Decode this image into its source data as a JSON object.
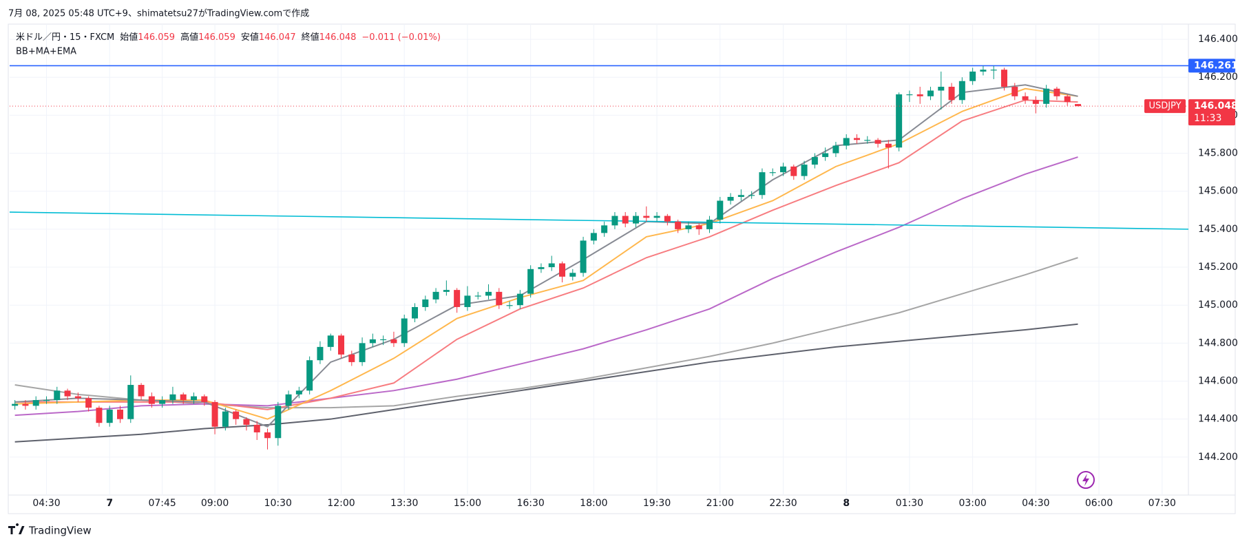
{
  "caption": "7月 08, 2025 05:48 UTC+9、shimatetsu27がTradingView.comで作成",
  "legend": {
    "symbol": "米ドル／円・15・FXCM",
    "open_label": "始値",
    "high_label": "高値",
    "low_label": "安値",
    "close_label": "終値",
    "change": "−0.011 (−0.01%)",
    "indicators_label": "BB+MA+EMA"
  },
  "footer": {
    "brand": "TradingView"
  },
  "chart_data": {
    "type": "candlestick",
    "up_color": "#089981",
    "down_color": "#f23645",
    "open": [
      144.47,
      144.48,
      144.47,
      144.5,
      144.5,
      144.55,
      144.52,
      144.51,
      144.46,
      144.38,
      144.45,
      144.4,
      144.58,
      144.52,
      144.48,
      144.5,
      144.53,
      144.5,
      144.52,
      144.49,
      144.36,
      144.44,
      144.4,
      144.37,
      144.33,
      144.3,
      144.47,
      144.53,
      144.55,
      144.71,
      144.78,
      144.84,
      144.74,
      144.7,
      144.8,
      144.82,
      144.82,
      144.8,
      144.93,
      144.99,
      145.03,
      145.07,
      145.08,
      144.99,
      145.05,
      145.05,
      145.07,
      145.0,
      145.0,
      145.06,
      145.19,
      145.2,
      145.22,
      145.15,
      145.17,
      145.34,
      145.38,
      145.42,
      145.47,
      145.43,
      145.47,
      145.46,
      145.47,
      145.44,
      145.4,
      145.42,
      145.4,
      145.45,
      145.55,
      145.57,
      145.58,
      145.58,
      145.7,
      145.7,
      145.73,
      145.68,
      145.74,
      145.78,
      145.8,
      145.84,
      145.88,
      145.87,
      145.87,
      145.85,
      145.83,
      146.11,
      146.11,
      146.1,
      146.13,
      146.15,
      146.08,
      146.18,
      146.23,
      146.24,
      146.24,
      146.15,
      146.1,
      146.08,
      146.06,
      146.14,
      146.1,
      146.059
    ],
    "high": [
      144.5,
      144.5,
      144.52,
      144.52,
      144.57,
      144.56,
      144.54,
      144.52,
      144.47,
      144.47,
      144.47,
      144.63,
      144.59,
      144.54,
      144.52,
      144.57,
      144.54,
      144.54,
      144.53,
      144.5,
      144.46,
      144.45,
      144.41,
      144.39,
      144.35,
      144.49,
      144.55,
      144.57,
      144.73,
      144.81,
      144.85,
      144.85,
      144.76,
      144.83,
      144.85,
      144.84,
      144.86,
      144.95,
      145.01,
      145.05,
      145.09,
      145.13,
      145.09,
      145.1,
      145.07,
      145.11,
      145.09,
      145.02,
      145.08,
      145.21,
      145.22,
      145.26,
      145.23,
      145.19,
      145.36,
      145.4,
      145.44,
      145.49,
      145.49,
      145.49,
      145.52,
      145.49,
      145.48,
      145.45,
      145.44,
      145.43,
      145.47,
      145.57,
      145.59,
      145.61,
      145.6,
      145.72,
      145.72,
      145.75,
      145.74,
      145.76,
      145.8,
      145.83,
      145.86,
      145.9,
      145.9,
      145.89,
      145.88,
      145.87,
      146.12,
      146.13,
      146.15,
      146.15,
      146.23,
      146.17,
      146.2,
      146.25,
      146.26,
      146.26,
      146.25,
      146.17,
      146.12,
      146.1,
      146.16,
      146.15,
      146.11,
      146.059
    ],
    "low": [
      144.45,
      144.45,
      144.45,
      144.48,
      144.48,
      144.5,
      144.49,
      144.44,
      144.36,
      144.36,
      144.38,
      144.38,
      144.5,
      144.46,
      144.46,
      144.48,
      144.48,
      144.48,
      144.47,
      144.32,
      144.34,
      144.37,
      144.34,
      144.29,
      144.24,
      144.26,
      144.45,
      144.51,
      144.53,
      144.69,
      144.76,
      144.72,
      144.68,
      144.68,
      144.78,
      144.79,
      144.78,
      144.78,
      144.91,
      144.97,
      145.01,
      145.05,
      144.96,
      144.97,
      145.03,
      145.03,
      144.98,
      144.98,
      144.98,
      145.04,
      145.17,
      145.18,
      145.12,
      145.13,
      145.15,
      145.32,
      145.36,
      145.4,
      145.41,
      145.41,
      145.44,
      145.44,
      145.42,
      145.38,
      145.38,
      145.37,
      145.38,
      145.43,
      145.53,
      145.55,
      145.56,
      145.56,
      145.68,
      145.68,
      145.66,
      145.66,
      145.72,
      145.76,
      145.78,
      145.82,
      145.85,
      145.85,
      145.83,
      145.72,
      145.81,
      146.07,
      146.06,
      146.08,
      146.03,
      146.06,
      146.06,
      146.16,
      146.21,
      146.19,
      146.13,
      146.08,
      146.06,
      146.01,
      146.04,
      146.08,
      146.05,
      146.047
    ],
    "close": [
      144.48,
      144.47,
      144.5,
      144.5,
      144.55,
      144.52,
      144.51,
      144.46,
      144.38,
      144.45,
      144.4,
      144.58,
      144.52,
      144.48,
      144.5,
      144.53,
      144.5,
      144.52,
      144.49,
      144.36,
      144.44,
      144.4,
      144.37,
      144.33,
      144.3,
      144.47,
      144.53,
      144.55,
      144.71,
      144.78,
      144.84,
      144.74,
      144.7,
      144.8,
      144.82,
      144.82,
      144.8,
      144.93,
      144.99,
      145.03,
      145.07,
      145.08,
      144.99,
      145.05,
      145.05,
      145.07,
      145.0,
      145.0,
      145.06,
      145.19,
      145.2,
      145.22,
      145.15,
      145.17,
      145.34,
      145.38,
      145.42,
      145.47,
      145.43,
      145.47,
      145.46,
      145.47,
      145.44,
      145.4,
      145.42,
      145.4,
      145.45,
      145.55,
      145.57,
      145.58,
      145.58,
      145.7,
      145.7,
      145.73,
      145.68,
      145.74,
      145.78,
      145.8,
      145.84,
      145.88,
      145.87,
      145.87,
      145.85,
      145.83,
      146.11,
      146.11,
      146.1,
      146.13,
      146.15,
      146.08,
      146.18,
      146.23,
      146.24,
      146.24,
      146.15,
      146.1,
      146.08,
      146.06,
      146.14,
      146.1,
      146.07,
      146.048
    ],
    "line_x": [
      0,
      6,
      12,
      18,
      24,
      30,
      36,
      42,
      48,
      54,
      60,
      66,
      72,
      78,
      84,
      90,
      96,
      101
    ],
    "lines": [
      {
        "color": "#a5a5a5",
        "values": [
          144.58,
          144.53,
          144.5,
          144.48,
          144.46,
          144.46,
          144.47,
          144.52,
          144.56,
          144.61,
          144.67,
          144.73,
          144.8,
          144.88,
          144.96,
          145.06,
          145.16,
          145.25
        ]
      },
      {
        "color": "#5d606b",
        "values": [
          144.28,
          144.3,
          144.32,
          144.35,
          144.37,
          144.4,
          144.45,
          144.5,
          144.55,
          144.6,
          144.65,
          144.7,
          144.74,
          144.78,
          144.81,
          144.84,
          144.87,
          144.9
        ]
      },
      {
        "color": "#ba68c8",
        "values": [
          144.42,
          144.44,
          144.47,
          144.48,
          144.47,
          144.51,
          144.55,
          144.61,
          144.69,
          144.77,
          144.87,
          144.98,
          145.14,
          145.28,
          145.41,
          145.56,
          145.69,
          145.78
        ]
      },
      {
        "color": "#f77c80",
        "values": [
          144.49,
          144.49,
          144.49,
          144.49,
          144.45,
          144.51,
          144.59,
          144.82,
          144.98,
          145.09,
          145.25,
          145.36,
          145.5,
          145.63,
          145.75,
          145.97,
          146.08,
          146.07
        ]
      },
      {
        "color": "#ffb74d",
        "values": [
          144.48,
          144.49,
          144.5,
          144.5,
          144.4,
          144.55,
          144.72,
          144.93,
          145.04,
          145.13,
          145.36,
          145.43,
          145.55,
          145.73,
          145.85,
          146.02,
          146.14,
          146.1
        ]
      },
      {
        "color": "#878a93",
        "values": [
          144.49,
          144.51,
          144.5,
          144.49,
          144.36,
          144.7,
          144.82,
          145.0,
          145.05,
          145.24,
          145.44,
          145.43,
          145.66,
          145.84,
          145.87,
          146.12,
          146.16,
          146.1
        ]
      }
    ],
    "trendline": {
      "color": "#00bcd4",
      "x": [
        -0.5,
        111.5
      ],
      "values": [
        145.49,
        145.4
      ]
    },
    "hline": {
      "color": "#2962ff",
      "value": 146.261
    },
    "symbol_tag": "USDJPY",
    "countdown": "11:33",
    "xlim": [
      -0.5,
      111.5
    ],
    "xticks": [
      {
        "value": 3,
        "label": "04:30"
      },
      {
        "value": 9,
        "label": "7"
      },
      {
        "value": 14,
        "label": "07:45"
      },
      {
        "value": 19,
        "label": "09:00"
      },
      {
        "value": 25,
        "label": "10:30"
      },
      {
        "value": 31,
        "label": "12:00"
      },
      {
        "value": 37,
        "label": "13:30"
      },
      {
        "value": 43,
        "label": "15:00"
      },
      {
        "value": 49,
        "label": "16:30"
      },
      {
        "value": 55,
        "label": "18:00"
      },
      {
        "value": 61,
        "label": "19:30"
      },
      {
        "value": 67,
        "label": "21:00"
      },
      {
        "value": 73,
        "label": "22:30"
      },
      {
        "value": 79,
        "label": "8"
      },
      {
        "value": 85,
        "label": "01:30"
      },
      {
        "value": 91,
        "label": "03:00"
      },
      {
        "value": 97,
        "label": "04:30"
      },
      {
        "value": 103,
        "label": "06:00"
      },
      {
        "value": 109,
        "label": "07:30"
      }
    ],
    "ylim": [
      144.0,
      146.48
    ],
    "yticks": [
      {
        "value": 144.2,
        "label": "144.200"
      },
      {
        "value": 144.4,
        "label": "144.400"
      },
      {
        "value": 144.6,
        "label": "144.600"
      },
      {
        "value": 144.8,
        "label": "144.800"
      },
      {
        "value": 145.0,
        "label": "145.000"
      },
      {
        "value": 145.2,
        "label": "145.200"
      },
      {
        "value": 145.4,
        "label": "145.400"
      },
      {
        "value": 145.6,
        "label": "145.600"
      },
      {
        "value": 145.8,
        "label": "145.800"
      },
      {
        "value": 146.0,
        "label": "146.000"
      },
      {
        "value": 146.2,
        "label": "146.200"
      },
      {
        "value": 146.4,
        "label": "146.400"
      }
    ],
    "grid": true
  }
}
